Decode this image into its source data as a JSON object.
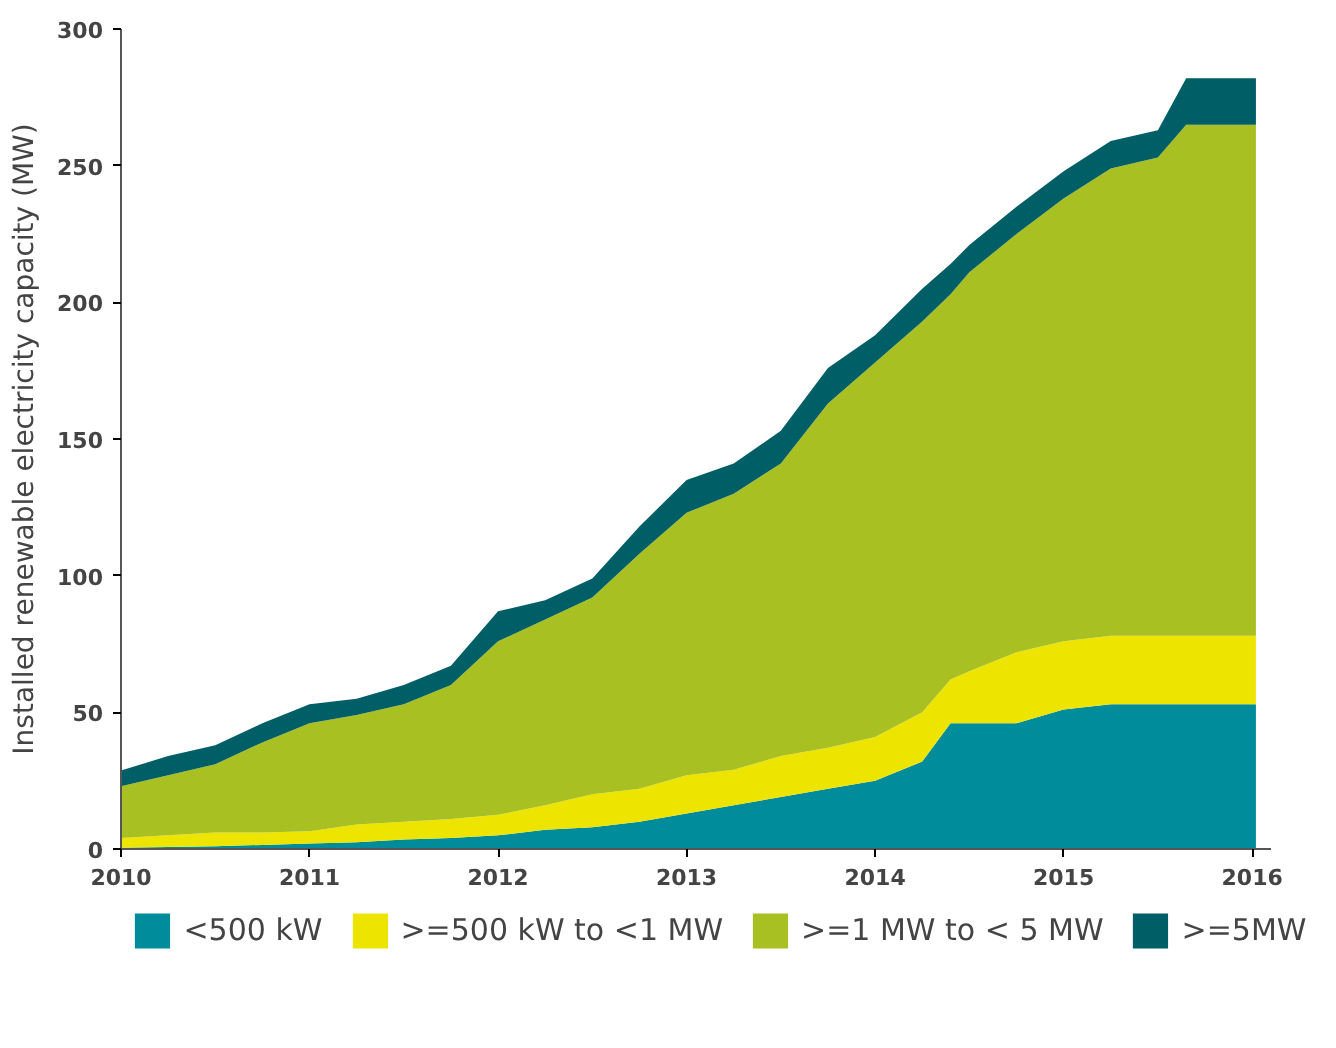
{
  "chart_data": {
    "type": "area",
    "stacked": true,
    "ylabel": "Installed renewable electricity capacity (MW)",
    "x": [
      2010,
      2010.25,
      2010.5,
      2010.75,
      2011,
      2011.25,
      2011.5,
      2011.75,
      2012,
      2012.25,
      2012.5,
      2012.75,
      2013,
      2013.25,
      2013.5,
      2013.75,
      2014,
      2014.25,
      2014.4,
      2014.5,
      2014.75,
      2015,
      2015.25,
      2015.5,
      2015.65,
      2016.02
    ],
    "series": [
      {
        "name": "<500 kW",
        "color": "#008c9a",
        "values": [
          0.5,
          0.7,
          1,
          1.5,
          2,
          2.5,
          3.5,
          4,
          5,
          7,
          8,
          10,
          13,
          16,
          19,
          22,
          25,
          32,
          46,
          46,
          46,
          51,
          53,
          53,
          53,
          53
        ]
      },
      {
        "name": ">=500 kW to <1 MW",
        "color": "#ede500",
        "values": [
          3.5,
          4.3,
          5,
          4.5,
          4.5,
          6.5,
          6.5,
          7,
          7.5,
          9,
          12,
          12,
          14,
          13,
          15,
          15,
          16,
          18,
          16,
          19,
          26,
          25,
          25,
          25,
          25,
          25
        ]
      },
      {
        "name": ">=1 MW to < 5 MW",
        "color": "#a8c022",
        "values": [
          19,
          22,
          25,
          33,
          39.5,
          40,
          43,
          49,
          63.5,
          68,
          72,
          86,
          96,
          101,
          107,
          126,
          137,
          143,
          141,
          146,
          153,
          162,
          171,
          175,
          187,
          187
        ]
      },
      {
        "name": ">=5MW",
        "color": "#005e66",
        "values": [
          5.7,
          7,
          7,
          7,
          7,
          6,
          7,
          7,
          11,
          7,
          7,
          10,
          12,
          11,
          12,
          13,
          10,
          12,
          11,
          10,
          10,
          10,
          10,
          10,
          17,
          17
        ]
      }
    ],
    "xlim": [
      2010,
      2016.1
    ],
    "xticks": [
      2010,
      2011,
      2012,
      2013,
      2014,
      2015,
      2016
    ],
    "ylim": [
      0,
      300
    ],
    "yticks": [
      0,
      50,
      100,
      150,
      200,
      250,
      300
    ],
    "grid": false,
    "legend": "bottom"
  }
}
